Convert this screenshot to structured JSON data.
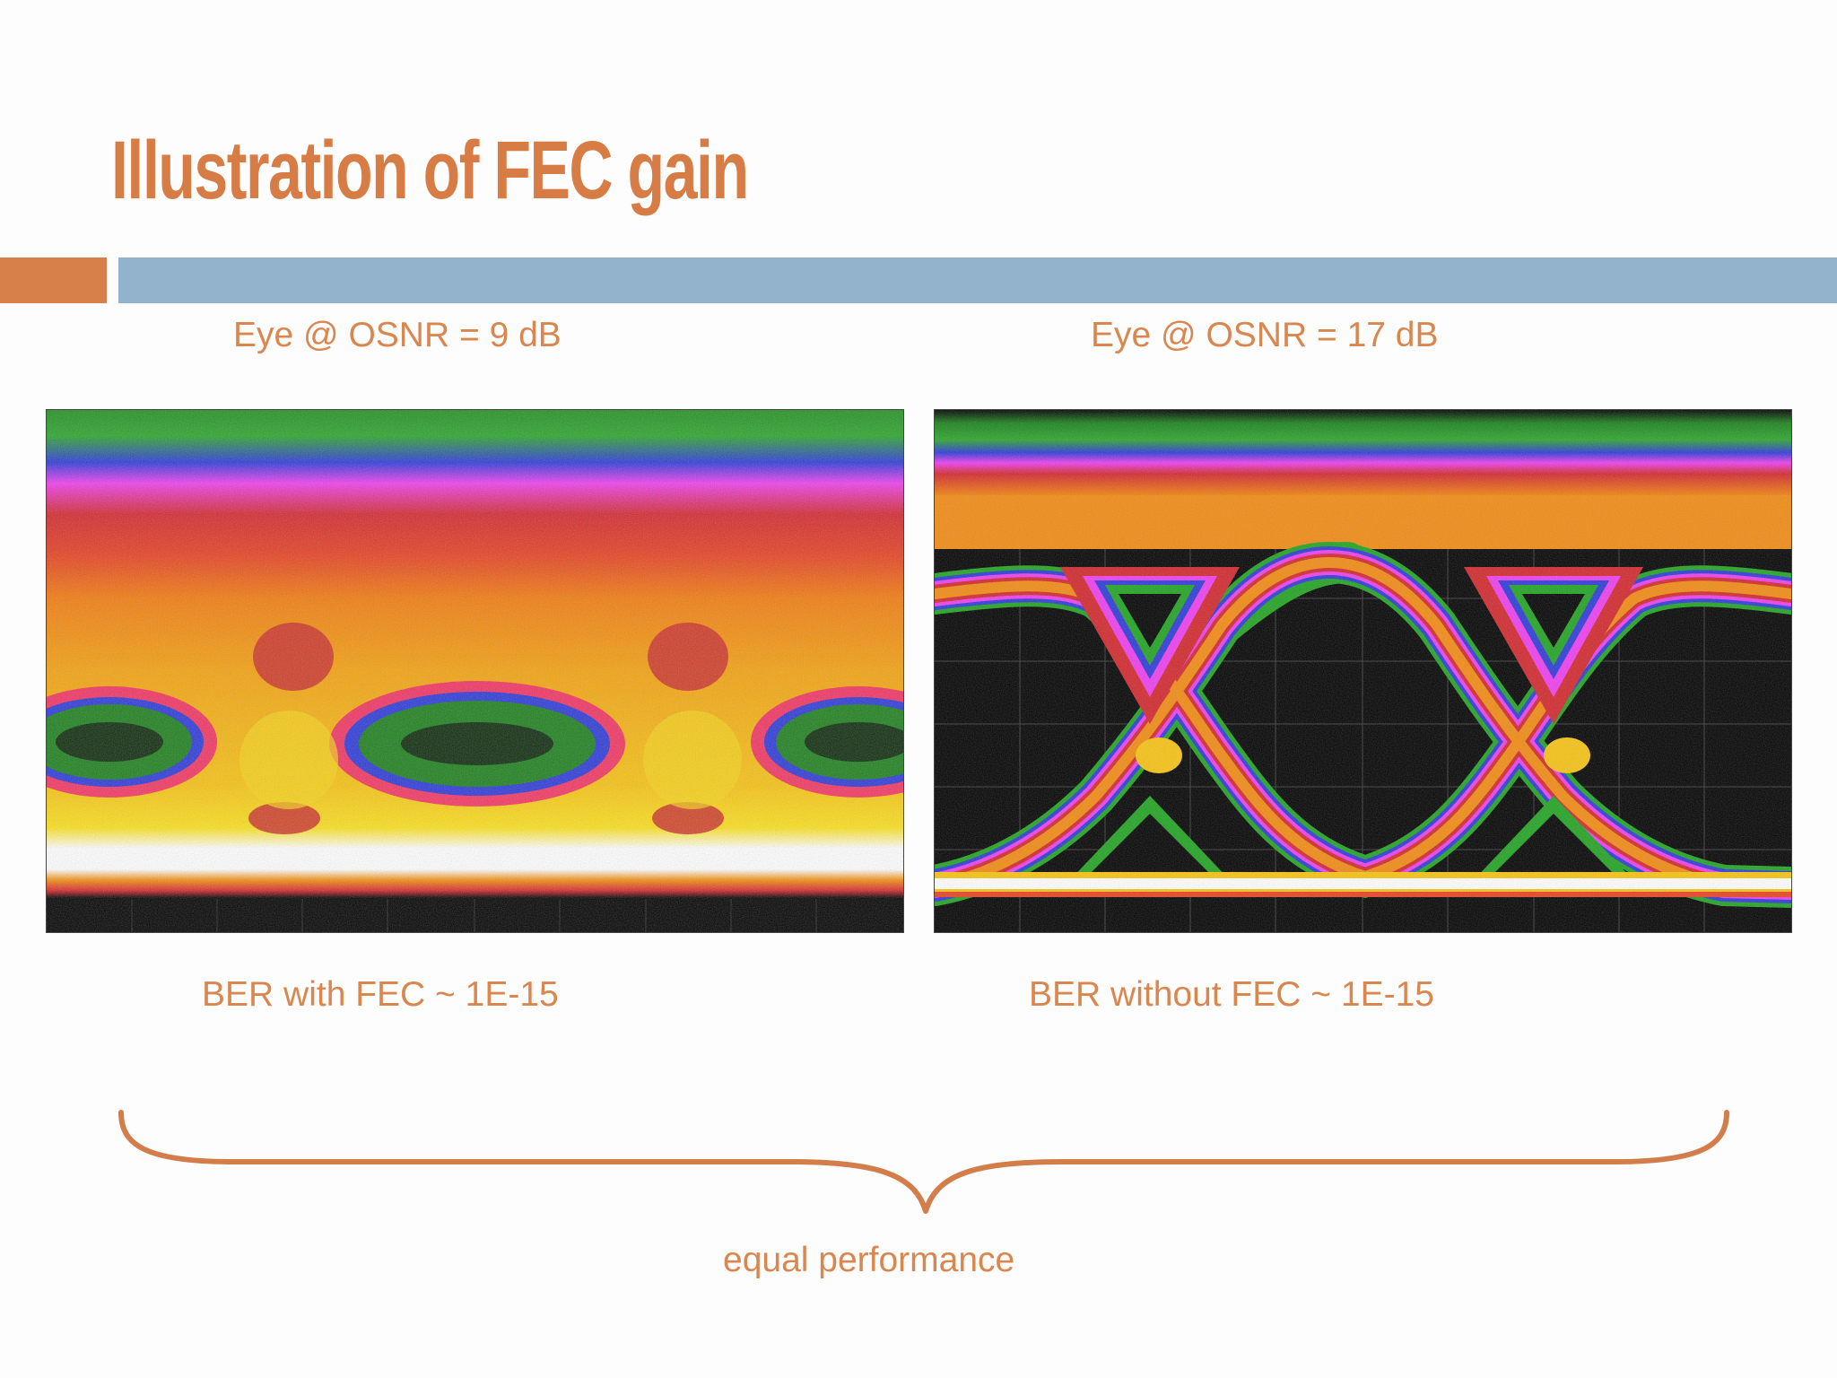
{
  "slide": {
    "title": "Illustration of FEC gain",
    "captions": {
      "left_top": "Eye @ OSNR = 9 dB",
      "right_top": "Eye @ OSNR = 17 dB",
      "left_bottom": "BER with FEC ~ 1E-15",
      "right_bottom": "BER without FEC ~ 1E-15",
      "equal": "equal performance"
    },
    "colors": {
      "title": "#d87c45",
      "accent_orange": "#d7804a",
      "accent_blue": "#93b3cd",
      "caption": "#d9864f",
      "brace": "#d37e4a"
    }
  }
}
